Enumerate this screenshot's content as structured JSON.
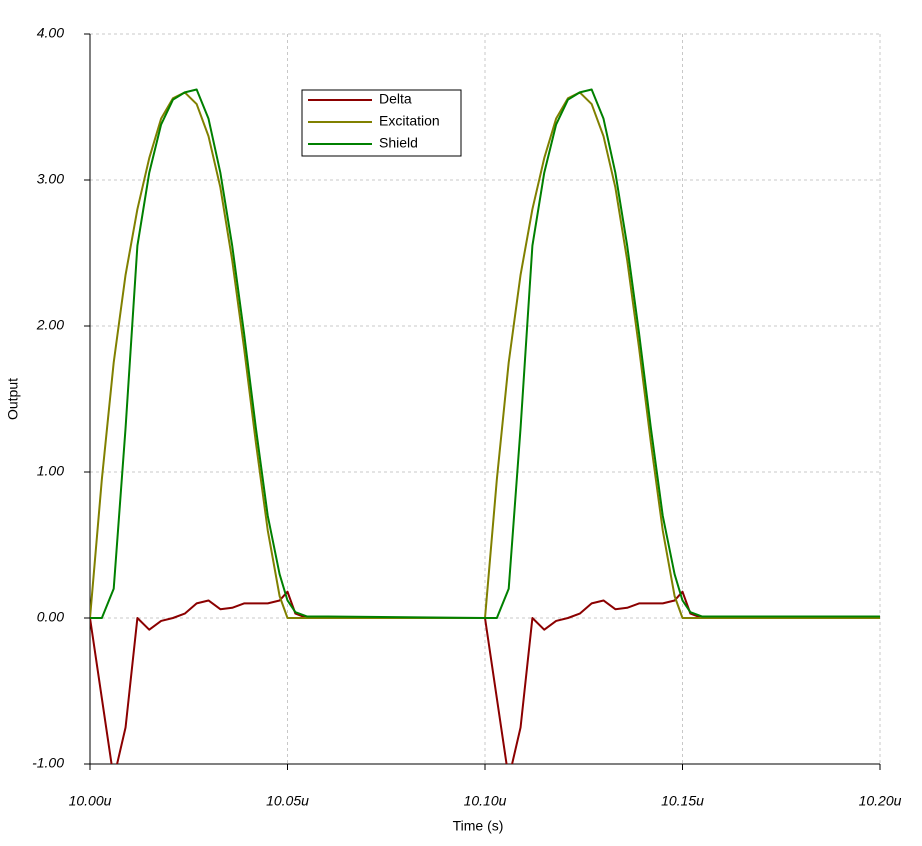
{
  "chart_data": {
    "type": "line",
    "x_label": "Time (s)",
    "y_label": "Output",
    "x": [
      10.0,
      10.003,
      10.006,
      10.009,
      10.012,
      10.015,
      10.018,
      10.021,
      10.024,
      10.027,
      10.03,
      10.033,
      10.036,
      10.039,
      10.042,
      10.045,
      10.048,
      10.05,
      10.052,
      10.055,
      10.06,
      10.1,
      10.103,
      10.106,
      10.109,
      10.112,
      10.115,
      10.118,
      10.121,
      10.124,
      10.127,
      10.13,
      10.133,
      10.136,
      10.139,
      10.142,
      10.145,
      10.148,
      10.15,
      10.152,
      10.155,
      10.16,
      10.2
    ],
    "series": [
      {
        "name": "Delta",
        "color": "#8b0000",
        "values": [
          0,
          -0.55,
          -1.1,
          -0.75,
          0,
          -0.08,
          -0.02,
          0,
          0.03,
          0.1,
          0.12,
          0.06,
          0.07,
          0.1,
          0.1,
          0.1,
          0.12,
          0.18,
          0.03,
          0,
          0,
          0,
          -0.55,
          -1.1,
          -0.75,
          0,
          -0.08,
          -0.02,
          0,
          0.03,
          0.1,
          0.12,
          0.06,
          0.07,
          0.1,
          0.1,
          0.1,
          0.12,
          0.18,
          0.03,
          0,
          0,
          0
        ]
      },
      {
        "name": "Excitation",
        "color": "#808000",
        "values": [
          0,
          0.95,
          1.75,
          2.35,
          2.8,
          3.15,
          3.42,
          3.56,
          3.6,
          3.52,
          3.3,
          2.95,
          2.45,
          1.85,
          1.2,
          0.6,
          0.15,
          0,
          0,
          0,
          0,
          0,
          0.95,
          1.75,
          2.35,
          2.8,
          3.15,
          3.42,
          3.56,
          3.6,
          3.52,
          3.3,
          2.95,
          2.45,
          1.85,
          1.2,
          0.6,
          0.15,
          0,
          0,
          0,
          0,
          0
        ]
      },
      {
        "name": "Shield",
        "color": "#008000",
        "values": [
          0,
          0,
          0.2,
          1.3,
          2.55,
          3.05,
          3.38,
          3.55,
          3.6,
          3.62,
          3.42,
          3.05,
          2.55,
          1.95,
          1.3,
          0.7,
          0.3,
          0.12,
          0.04,
          0.01,
          0.01,
          0,
          0,
          0.2,
          1.3,
          2.55,
          3.05,
          3.38,
          3.55,
          3.6,
          3.62,
          3.42,
          3.05,
          2.55,
          1.95,
          1.3,
          0.7,
          0.3,
          0.12,
          0.04,
          0.01,
          0.01,
          0.01
        ]
      }
    ],
    "xlim": [
      10.0,
      10.2
    ],
    "xticks": [
      {
        "value": 10.0,
        "label": "10.00u"
      },
      {
        "value": 10.05,
        "label": "10.05u"
      },
      {
        "value": 10.1,
        "label": "10.10u"
      },
      {
        "value": 10.15,
        "label": "10.15u"
      },
      {
        "value": 10.2,
        "label": "10.20u"
      }
    ],
    "ylim": [
      -1,
      4
    ],
    "yticks": [
      {
        "value": -1,
        "label": "-1.00"
      },
      {
        "value": 0,
        "label": "0.00"
      },
      {
        "value": 1,
        "label": "1.00"
      },
      {
        "value": 2,
        "label": "2.00"
      },
      {
        "value": 3,
        "label": "3.00"
      },
      {
        "value": 4,
        "label": "4.00"
      }
    ],
    "grid": true
  }
}
